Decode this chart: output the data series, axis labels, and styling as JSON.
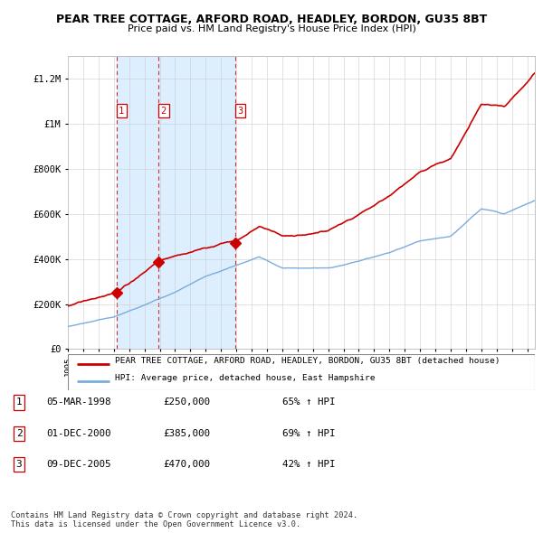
{
  "title": "PEAR TREE COTTAGE, ARFORD ROAD, HEADLEY, BORDON, GU35 8BT",
  "subtitle": "Price paid vs. HM Land Registry's House Price Index (HPI)",
  "ylim": [
    0,
    1300000
  ],
  "yticks": [
    0,
    200000,
    400000,
    600000,
    800000,
    1000000,
    1200000
  ],
  "ytick_labels": [
    "£0",
    "£200K",
    "£400K",
    "£600K",
    "£800K",
    "£1M",
    "£1.2M"
  ],
  "hpi_color": "#7aacdc",
  "price_color": "#cc0000",
  "vline_color": "#cc0000",
  "shade_color": "#ddeeff",
  "background_color": "#ffffff",
  "grid_color": "#cccccc",
  "transactions": [
    {
      "date": 1998.17,
      "price": 250000,
      "label": "1"
    },
    {
      "date": 2000.92,
      "price": 385000,
      "label": "2"
    },
    {
      "date": 2005.93,
      "price": 470000,
      "label": "3"
    }
  ],
  "transaction_table": [
    {
      "num": "1",
      "date": "05-MAR-1998",
      "price": "£250,000",
      "change": "65% ↑ HPI"
    },
    {
      "num": "2",
      "date": "01-DEC-2000",
      "price": "£385,000",
      "change": "69% ↑ HPI"
    },
    {
      "num": "3",
      "date": "09-DEC-2005",
      "price": "£470,000",
      "change": "42% ↑ HPI"
    }
  ],
  "legend_line1": "PEAR TREE COTTAGE, ARFORD ROAD, HEADLEY, BORDON, GU35 8BT (detached house)",
  "legend_line2": "HPI: Average price, detached house, East Hampshire",
  "copyright": "Contains HM Land Registry data © Crown copyright and database right 2024.\nThis data is licensed under the Open Government Licence v3.0.",
  "xmin": 1995.0,
  "xmax": 2025.5
}
